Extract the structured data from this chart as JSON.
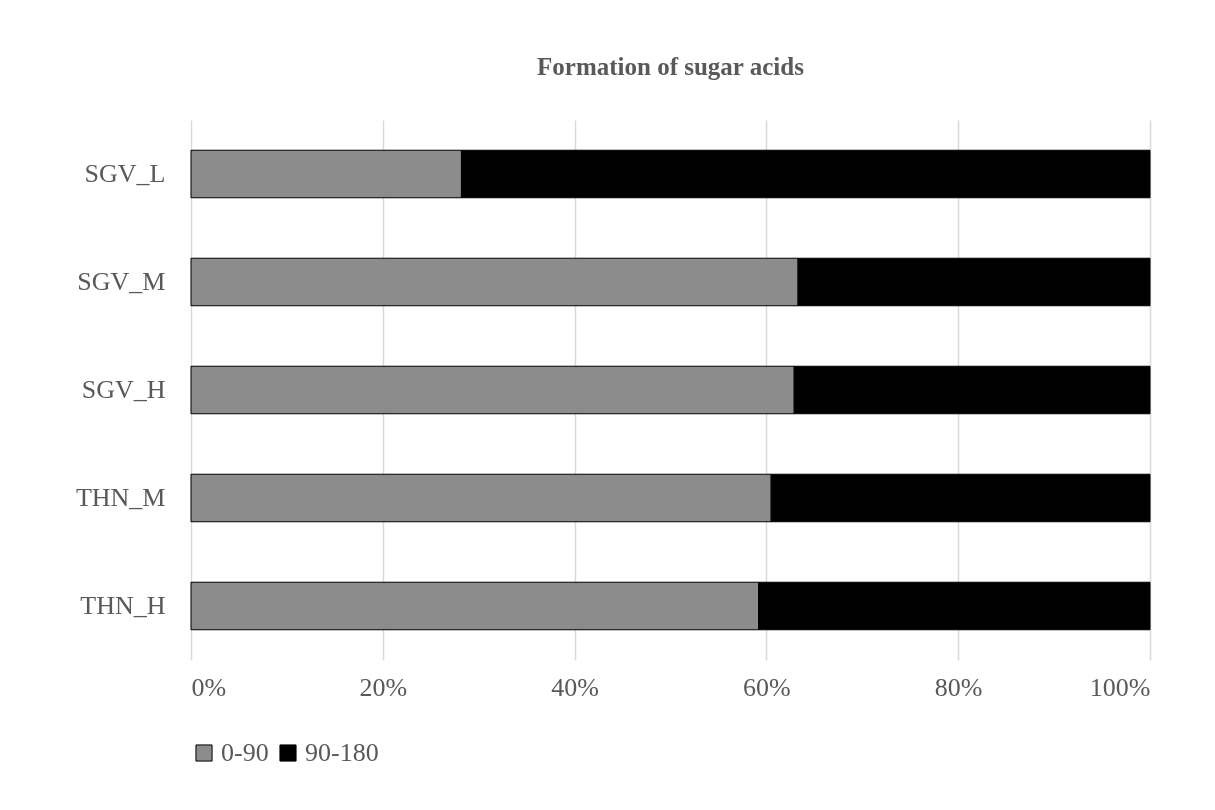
{
  "chart_data": {
    "type": "bar",
    "title": "Formation of sugar acids",
    "orientation": "horizontal",
    "stacked": true,
    "categories": [
      "SGV_L",
      "SGV_M",
      "SGV_H",
      "THN_M",
      "THN_H"
    ],
    "series": [
      {
        "name": "0-90",
        "color": "#8c8c8c",
        "values": [
          28.2,
          63.3,
          62.9,
          60.5,
          59.2
        ]
      },
      {
        "name": "90-180",
        "color": "#000000",
        "values": [
          71.8,
          36.7,
          37.1,
          39.5,
          40.8
        ]
      }
    ],
    "xlim": [
      0,
      100
    ],
    "xticks": [
      {
        "value": 0,
        "label": "0%"
      },
      {
        "value": 20,
        "label": "20%"
      },
      {
        "value": 40,
        "label": "40%"
      },
      {
        "value": 60,
        "label": "60%"
      },
      {
        "value": 80,
        "label": "80%"
      },
      {
        "value": 100,
        "label": "100%"
      }
    ],
    "grid": "x",
    "legend": "bottom"
  }
}
